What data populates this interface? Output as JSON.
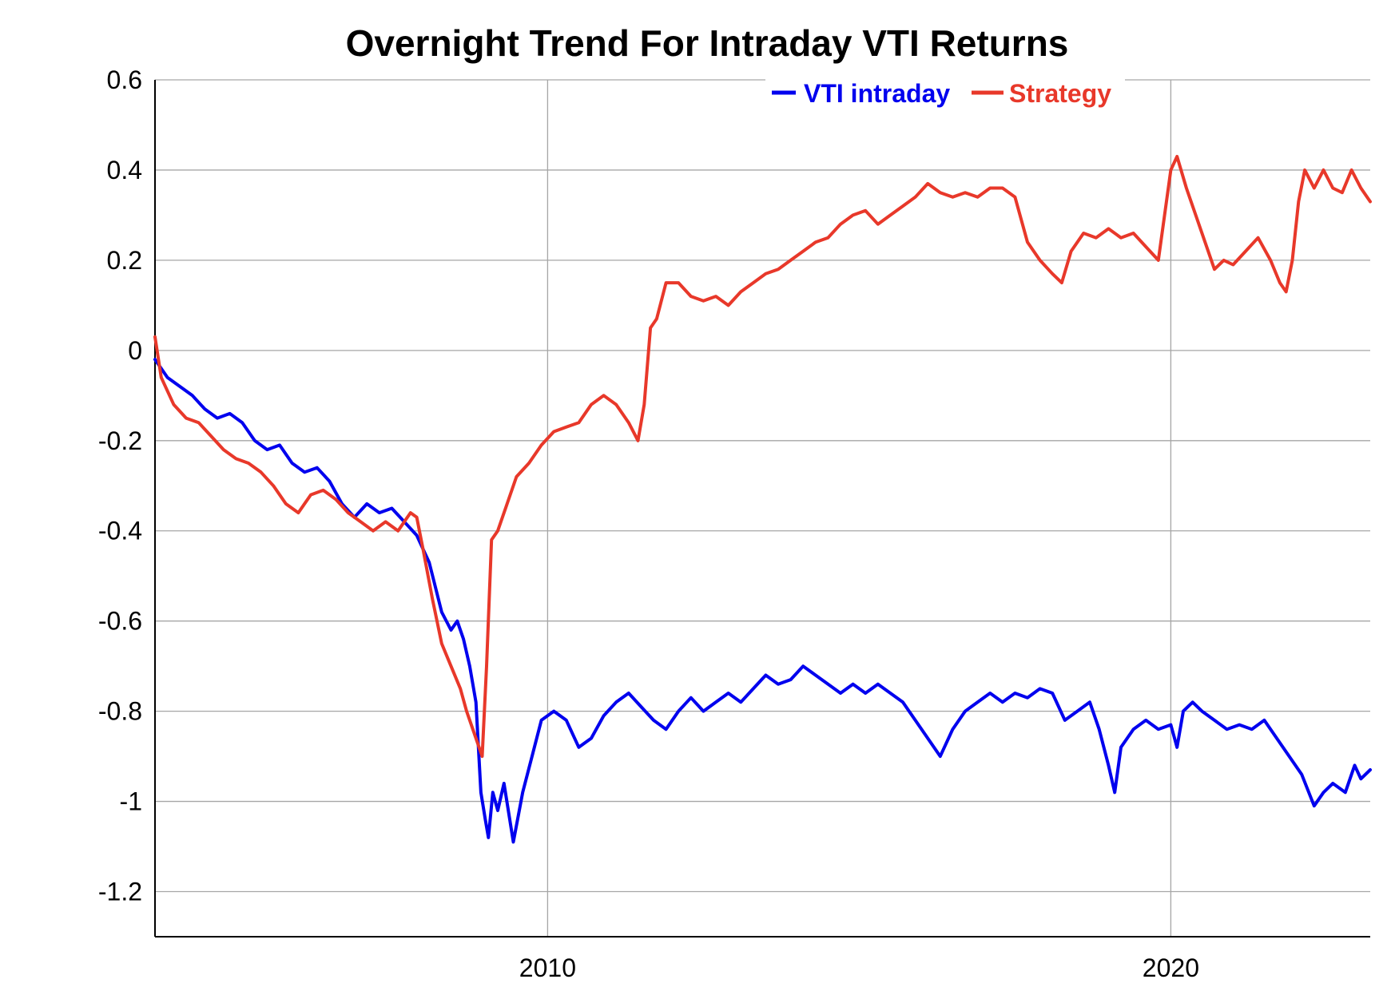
{
  "chart_data": {
    "type": "line",
    "title": "Overnight Trend For Intraday VTI Returns",
    "xlabel": "",
    "ylabel": "",
    "xlim": [
      2003.7,
      2023.2
    ],
    "ylim": [
      -1.3,
      0.6
    ],
    "x_ticks": [
      {
        "value": 2010,
        "label": "2010"
      },
      {
        "value": 2020,
        "label": "2020"
      }
    ],
    "y_ticks": [
      {
        "value": 0.6,
        "label": "0.6"
      },
      {
        "value": 0.4,
        "label": "0.4"
      },
      {
        "value": 0.2,
        "label": "0.2"
      },
      {
        "value": 0,
        "label": "0"
      },
      {
        "value": -0.2,
        "label": "-0.2"
      },
      {
        "value": -0.4,
        "label": "-0.4"
      },
      {
        "value": -0.6,
        "label": "-0.6"
      },
      {
        "value": -0.8,
        "label": "-0.8"
      },
      {
        "value": -1,
        "label": "-1"
      },
      {
        "value": -1.2,
        "label": "-1.2"
      }
    ],
    "grid": true,
    "legend_position": "top-right",
    "series": [
      {
        "name": "VTI intraday",
        "color": "#0000ee",
        "points": [
          [
            2003.7,
            -0.02
          ],
          [
            2003.9,
            -0.06
          ],
          [
            2004.1,
            -0.08
          ],
          [
            2004.3,
            -0.1
          ],
          [
            2004.5,
            -0.13
          ],
          [
            2004.7,
            -0.15
          ],
          [
            2004.9,
            -0.14
          ],
          [
            2005.1,
            -0.16
          ],
          [
            2005.3,
            -0.2
          ],
          [
            2005.5,
            -0.22
          ],
          [
            2005.7,
            -0.21
          ],
          [
            2005.9,
            -0.25
          ],
          [
            2006.1,
            -0.27
          ],
          [
            2006.3,
            -0.26
          ],
          [
            2006.5,
            -0.29
          ],
          [
            2006.7,
            -0.34
          ],
          [
            2006.9,
            -0.37
          ],
          [
            2007.1,
            -0.34
          ],
          [
            2007.3,
            -0.36
          ],
          [
            2007.5,
            -0.35
          ],
          [
            2007.7,
            -0.38
          ],
          [
            2007.9,
            -0.41
          ],
          [
            2008.1,
            -0.47
          ],
          [
            2008.3,
            -0.58
          ],
          [
            2008.45,
            -0.62
          ],
          [
            2008.55,
            -0.6
          ],
          [
            2008.65,
            -0.64
          ],
          [
            2008.75,
            -0.7
          ],
          [
            2008.85,
            -0.78
          ],
          [
            2008.93,
            -0.98
          ],
          [
            2009.0,
            -1.04
          ],
          [
            2009.05,
            -1.08
          ],
          [
            2009.12,
            -0.98
          ],
          [
            2009.2,
            -1.02
          ],
          [
            2009.3,
            -0.96
          ],
          [
            2009.45,
            -1.09
          ],
          [
            2009.6,
            -0.98
          ],
          [
            2009.75,
            -0.9
          ],
          [
            2009.9,
            -0.82
          ],
          [
            2010.1,
            -0.8
          ],
          [
            2010.3,
            -0.82
          ],
          [
            2010.5,
            -0.88
          ],
          [
            2010.7,
            -0.86
          ],
          [
            2010.9,
            -0.81
          ],
          [
            2011.1,
            -0.78
          ],
          [
            2011.3,
            -0.76
          ],
          [
            2011.5,
            -0.79
          ],
          [
            2011.7,
            -0.82
          ],
          [
            2011.9,
            -0.84
          ],
          [
            2012.1,
            -0.8
          ],
          [
            2012.3,
            -0.77
          ],
          [
            2012.5,
            -0.8
          ],
          [
            2012.7,
            -0.78
          ],
          [
            2012.9,
            -0.76
          ],
          [
            2013.1,
            -0.78
          ],
          [
            2013.3,
            -0.75
          ],
          [
            2013.5,
            -0.72
          ],
          [
            2013.7,
            -0.74
          ],
          [
            2013.9,
            -0.73
          ],
          [
            2014.1,
            -0.7
          ],
          [
            2014.3,
            -0.72
          ],
          [
            2014.5,
            -0.74
          ],
          [
            2014.7,
            -0.76
          ],
          [
            2014.9,
            -0.74
          ],
          [
            2015.1,
            -0.76
          ],
          [
            2015.3,
            -0.74
          ],
          [
            2015.5,
            -0.76
          ],
          [
            2015.7,
            -0.78
          ],
          [
            2015.9,
            -0.82
          ],
          [
            2016.1,
            -0.86
          ],
          [
            2016.3,
            -0.9
          ],
          [
            2016.5,
            -0.84
          ],
          [
            2016.7,
            -0.8
          ],
          [
            2016.9,
            -0.78
          ],
          [
            2017.1,
            -0.76
          ],
          [
            2017.3,
            -0.78
          ],
          [
            2017.5,
            -0.76
          ],
          [
            2017.7,
            -0.77
          ],
          [
            2017.9,
            -0.75
          ],
          [
            2018.1,
            -0.76
          ],
          [
            2018.3,
            -0.82
          ],
          [
            2018.5,
            -0.8
          ],
          [
            2018.7,
            -0.78
          ],
          [
            2018.85,
            -0.84
          ],
          [
            2019.0,
            -0.92
          ],
          [
            2019.1,
            -0.98
          ],
          [
            2019.2,
            -0.88
          ],
          [
            2019.4,
            -0.84
          ],
          [
            2019.6,
            -0.82
          ],
          [
            2019.8,
            -0.84
          ],
          [
            2020.0,
            -0.83
          ],
          [
            2020.1,
            -0.88
          ],
          [
            2020.2,
            -0.8
          ],
          [
            2020.35,
            -0.78
          ],
          [
            2020.5,
            -0.8
          ],
          [
            2020.7,
            -0.82
          ],
          [
            2020.9,
            -0.84
          ],
          [
            2021.1,
            -0.83
          ],
          [
            2021.3,
            -0.84
          ],
          [
            2021.5,
            -0.82
          ],
          [
            2021.7,
            -0.86
          ],
          [
            2021.9,
            -0.9
          ],
          [
            2022.1,
            -0.94
          ],
          [
            2022.3,
            -1.01
          ],
          [
            2022.45,
            -0.98
          ],
          [
            2022.6,
            -0.96
          ],
          [
            2022.8,
            -0.98
          ],
          [
            2022.95,
            -0.92
          ],
          [
            2023.05,
            -0.95
          ],
          [
            2023.2,
            -0.93
          ]
        ]
      },
      {
        "name": "Strategy",
        "color": "#e8382a",
        "points": [
          [
            2003.7,
            0.03
          ],
          [
            2003.8,
            -0.06
          ],
          [
            2004.0,
            -0.12
          ],
          [
            2004.2,
            -0.15
          ],
          [
            2004.4,
            -0.16
          ],
          [
            2004.6,
            -0.19
          ],
          [
            2004.8,
            -0.22
          ],
          [
            2005.0,
            -0.24
          ],
          [
            2005.2,
            -0.25
          ],
          [
            2005.4,
            -0.27
          ],
          [
            2005.6,
            -0.3
          ],
          [
            2005.8,
            -0.34
          ],
          [
            2006.0,
            -0.36
          ],
          [
            2006.2,
            -0.32
          ],
          [
            2006.4,
            -0.31
          ],
          [
            2006.6,
            -0.33
          ],
          [
            2006.8,
            -0.36
          ],
          [
            2007.0,
            -0.38
          ],
          [
            2007.2,
            -0.4
          ],
          [
            2007.4,
            -0.38
          ],
          [
            2007.6,
            -0.4
          ],
          [
            2007.8,
            -0.36
          ],
          [
            2007.9,
            -0.37
          ],
          [
            2008.0,
            -0.44
          ],
          [
            2008.15,
            -0.55
          ],
          [
            2008.3,
            -0.65
          ],
          [
            2008.45,
            -0.7
          ],
          [
            2008.6,
            -0.75
          ],
          [
            2008.7,
            -0.8
          ],
          [
            2008.8,
            -0.84
          ],
          [
            2008.9,
            -0.88
          ],
          [
            2008.95,
            -0.9
          ],
          [
            2009.02,
            -0.7
          ],
          [
            2009.1,
            -0.42
          ],
          [
            2009.2,
            -0.4
          ],
          [
            2009.35,
            -0.34
          ],
          [
            2009.5,
            -0.28
          ],
          [
            2009.7,
            -0.25
          ],
          [
            2009.9,
            -0.21
          ],
          [
            2010.1,
            -0.18
          ],
          [
            2010.3,
            -0.17
          ],
          [
            2010.5,
            -0.16
          ],
          [
            2010.7,
            -0.12
          ],
          [
            2010.9,
            -0.1
          ],
          [
            2011.1,
            -0.12
          ],
          [
            2011.3,
            -0.16
          ],
          [
            2011.45,
            -0.2
          ],
          [
            2011.55,
            -0.12
          ],
          [
            2011.65,
            0.05
          ],
          [
            2011.75,
            0.07
          ],
          [
            2011.9,
            0.15
          ],
          [
            2012.1,
            0.15
          ],
          [
            2012.3,
            0.12
          ],
          [
            2012.5,
            0.11
          ],
          [
            2012.7,
            0.12
          ],
          [
            2012.9,
            0.1
          ],
          [
            2013.1,
            0.13
          ],
          [
            2013.3,
            0.15
          ],
          [
            2013.5,
            0.17
          ],
          [
            2013.7,
            0.18
          ],
          [
            2013.9,
            0.2
          ],
          [
            2014.1,
            0.22
          ],
          [
            2014.3,
            0.24
          ],
          [
            2014.5,
            0.25
          ],
          [
            2014.7,
            0.28
          ],
          [
            2014.9,
            0.3
          ],
          [
            2015.1,
            0.31
          ],
          [
            2015.3,
            0.28
          ],
          [
            2015.5,
            0.3
          ],
          [
            2015.7,
            0.32
          ],
          [
            2015.9,
            0.34
          ],
          [
            2016.1,
            0.37
          ],
          [
            2016.3,
            0.35
          ],
          [
            2016.5,
            0.34
          ],
          [
            2016.7,
            0.35
          ],
          [
            2016.9,
            0.34
          ],
          [
            2017.1,
            0.36
          ],
          [
            2017.3,
            0.36
          ],
          [
            2017.5,
            0.34
          ],
          [
            2017.7,
            0.24
          ],
          [
            2017.9,
            0.2
          ],
          [
            2018.1,
            0.17
          ],
          [
            2018.25,
            0.15
          ],
          [
            2018.4,
            0.22
          ],
          [
            2018.6,
            0.26
          ],
          [
            2018.8,
            0.25
          ],
          [
            2019.0,
            0.27
          ],
          [
            2019.2,
            0.25
          ],
          [
            2019.4,
            0.26
          ],
          [
            2019.6,
            0.23
          ],
          [
            2019.8,
            0.2
          ],
          [
            2019.9,
            0.3
          ],
          [
            2020.0,
            0.4
          ],
          [
            2020.1,
            0.43
          ],
          [
            2020.25,
            0.36
          ],
          [
            2020.4,
            0.3
          ],
          [
            2020.55,
            0.24
          ],
          [
            2020.7,
            0.18
          ],
          [
            2020.85,
            0.2
          ],
          [
            2021.0,
            0.19
          ],
          [
            2021.2,
            0.22
          ],
          [
            2021.4,
            0.25
          ],
          [
            2021.6,
            0.2
          ],
          [
            2021.75,
            0.15
          ],
          [
            2021.85,
            0.13
          ],
          [
            2021.95,
            0.2
          ],
          [
            2022.05,
            0.33
          ],
          [
            2022.15,
            0.4
          ],
          [
            2022.3,
            0.36
          ],
          [
            2022.45,
            0.4
          ],
          [
            2022.6,
            0.36
          ],
          [
            2022.75,
            0.35
          ],
          [
            2022.9,
            0.4
          ],
          [
            2023.05,
            0.36
          ],
          [
            2023.2,
            0.33
          ]
        ]
      }
    ]
  }
}
